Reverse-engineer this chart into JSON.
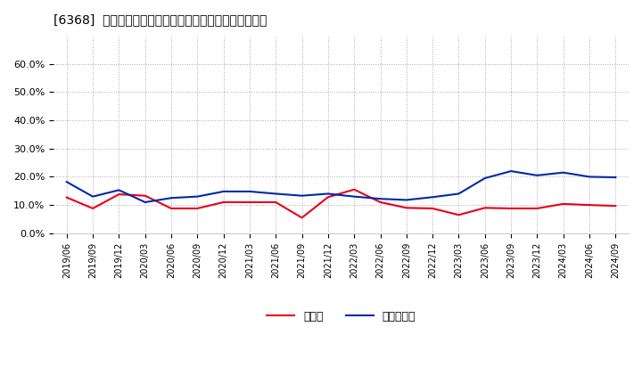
{
  "title": "[6368]  現預金、有利子負債の総資産に対する比率の推移",
  "x_labels": [
    "2019/06",
    "2019/09",
    "2019/12",
    "2020/03",
    "2020/06",
    "2020/09",
    "2020/12",
    "2021/03",
    "2021/06",
    "2021/09",
    "2021/12",
    "2022/03",
    "2022/06",
    "2022/09",
    "2022/12",
    "2023/03",
    "2023/06",
    "2023/09",
    "2023/12",
    "2024/03",
    "2024/06",
    "2024/09"
  ],
  "cash": [
    0.127,
    0.088,
    0.138,
    0.133,
    0.088,
    0.088,
    0.11,
    0.11,
    0.11,
    0.055,
    0.128,
    0.155,
    0.11,
    0.09,
    0.088,
    0.065,
    0.09,
    0.088,
    0.088,
    0.104,
    0.1,
    0.097
  ],
  "debt": [
    0.182,
    0.13,
    0.153,
    0.11,
    0.125,
    0.13,
    0.148,
    0.148,
    0.14,
    0.133,
    0.14,
    0.13,
    0.122,
    0.118,
    0.128,
    0.14,
    0.195,
    0.22,
    0.205,
    0.215,
    0.2,
    0.198
  ],
  "cash_color": "#e8001c",
  "debt_color": "#0029a6",
  "bg_color": "#ffffff",
  "grid_color": "#aaaaaa",
  "ylim": [
    0.0,
    0.7
  ],
  "yticks": [
    0.0,
    0.1,
    0.2,
    0.3,
    0.4,
    0.5,
    0.6
  ],
  "legend_cash": "現預金",
  "legend_debt": "有利子負債"
}
